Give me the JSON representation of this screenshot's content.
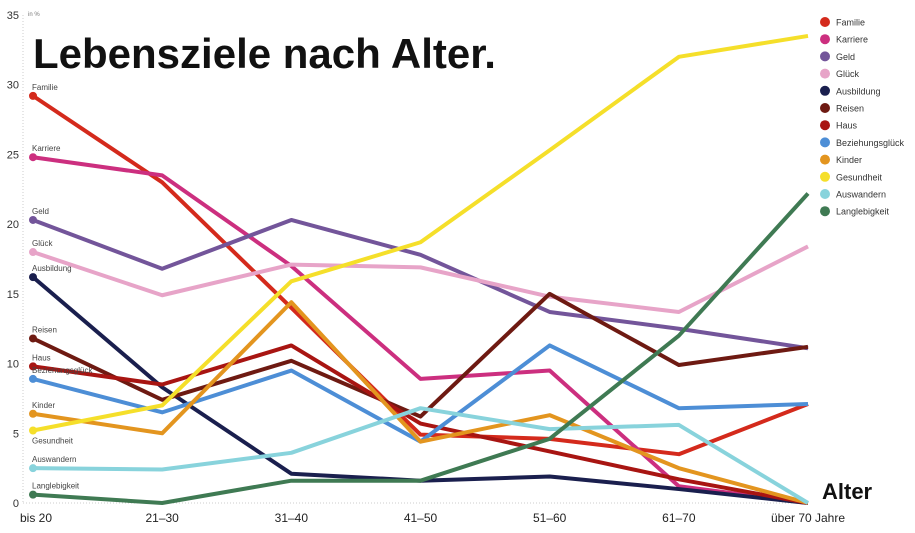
{
  "chart_data": {
    "type": "line",
    "title": "Lebensziele nach Alter.",
    "xlabel": "Alter",
    "ylabel": "in %",
    "ylim": [
      0,
      35
    ],
    "yticks": [
      0,
      5,
      10,
      15,
      20,
      25,
      30,
      35
    ],
    "grid": false,
    "legend_placement": "top-right",
    "categories": [
      "bis 20",
      "21–30",
      "31–40",
      "41–50",
      "51–60",
      "61–70",
      "über 70 Jahre"
    ],
    "series": [
      {
        "name": "Familie",
        "color": "#d42a1c",
        "values": [
          29.2,
          23.0,
          14.0,
          4.9,
          4.6,
          3.5,
          7.1
        ]
      },
      {
        "name": "Karriere",
        "color": "#cc2f7f",
        "values": [
          24.8,
          23.5,
          17.0,
          8.9,
          9.5,
          1.2,
          0
        ]
      },
      {
        "name": "Geld",
        "color": "#73559a",
        "values": [
          20.3,
          16.8,
          20.3,
          17.8,
          13.7,
          12.5,
          11.1
        ]
      },
      {
        "name": "Glück",
        "color": "#e7a4c8",
        "values": [
          18.0,
          14.9,
          17.1,
          16.9,
          14.8,
          13.7,
          18.4
        ]
      },
      {
        "name": "Ausbildung",
        "color": "#1a1f4e",
        "values": [
          16.2,
          8.3,
          2.1,
          1.6,
          1.9,
          1.0,
          0
        ]
      },
      {
        "name": "Reisen",
        "color": "#6e1a12",
        "values": [
          11.8,
          7.4,
          10.2,
          6.2,
          15.0,
          9.9,
          11.2
        ]
      },
      {
        "name": "Haus",
        "color": "#a81512",
        "values": [
          9.8,
          8.5,
          11.3,
          5.7,
          3.7,
          1.7,
          0
        ]
      },
      {
        "name": "Beziehungsglück",
        "color": "#4d8ed6",
        "values": [
          8.9,
          6.5,
          9.5,
          4.4,
          11.3,
          6.8,
          7.1
        ]
      },
      {
        "name": "Kinder",
        "color": "#e3951f",
        "values": [
          6.4,
          5.0,
          14.4,
          4.4,
          6.3,
          2.5,
          0
        ]
      },
      {
        "name": "Gesundheit",
        "color": "#f5df2a",
        "values": [
          5.2,
          7.0,
          15.9,
          18.7,
          25.3,
          32.0,
          33.5
        ]
      },
      {
        "name": "Auswandern",
        "color": "#88d3dc",
        "values": [
          2.5,
          2.4,
          3.6,
          6.8,
          5.3,
          5.6,
          0
        ]
      },
      {
        "name": "Langlebigkeit",
        "color": "#3f7a53",
        "values": [
          0.6,
          0,
          1.6,
          1.6,
          4.6,
          12.0,
          22.2
        ]
      }
    ]
  }
}
